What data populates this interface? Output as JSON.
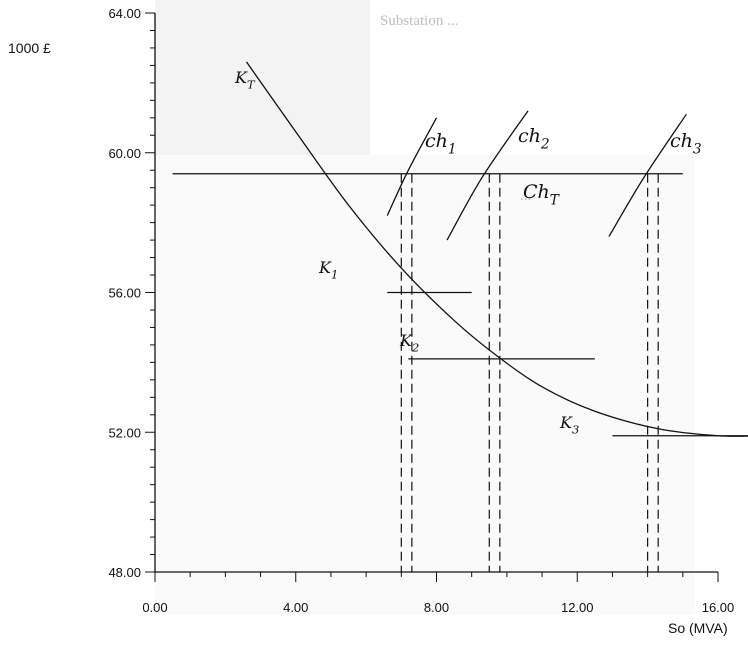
{
  "chart_data": {
    "type": "line",
    "y_unit_label": "1000 £",
    "xlabel": "So (MVA)",
    "xlim": [
      0,
      16
    ],
    "ylim": [
      48,
      64
    ],
    "x_ticks": [
      "0.00",
      "4.00",
      "8.00",
      "12.00",
      "16.00"
    ],
    "y_ticks": [
      "48.00",
      "52.00",
      "56.00",
      "60.00",
      "64.00"
    ],
    "curve": {
      "name": "K_T",
      "points": [
        [
          2.6,
          62.6
        ],
        [
          4.0,
          60.6
        ],
        [
          5.5,
          58.5
        ],
        [
          7.0,
          56.7
        ],
        [
          8.5,
          55.2
        ],
        [
          9.7,
          54.2
        ],
        [
          11.0,
          53.3
        ],
        [
          12.5,
          52.6
        ],
        [
          14.3,
          52.1
        ],
        [
          16.0,
          51.9
        ],
        [
          17.2,
          51.9
        ]
      ]
    },
    "horizontal_lines": [
      {
        "name": "Ch_T",
        "x_from": 0.5,
        "x_to": 15.0,
        "y": 59.4
      },
      {
        "name": "K_1",
        "x_from": 6.6,
        "x_to": 9.0,
        "y": 56.0
      },
      {
        "name": "K_2",
        "x_from": 7.2,
        "x_to": 12.5,
        "y": 54.1
      },
      {
        "name": "K_3",
        "x_from": 13.0,
        "x_to": 17.2,
        "y": 51.9
      }
    ],
    "short_curves": [
      {
        "name": "ch_1",
        "points": [
          [
            6.6,
            58.2
          ],
          [
            7.2,
            59.5
          ],
          [
            8.0,
            61.0
          ]
        ]
      },
      {
        "name": "ch_2",
        "points": [
          [
            8.3,
            57.5
          ],
          [
            9.3,
            59.3
          ],
          [
            10.6,
            61.2
          ]
        ]
      },
      {
        "name": "ch_3",
        "points": [
          [
            12.9,
            57.6
          ],
          [
            13.9,
            59.3
          ],
          [
            15.1,
            61.1
          ]
        ]
      }
    ],
    "dashed_pairs": [
      {
        "x1": 7.0,
        "x2": 7.3,
        "y_top": 59.4
      },
      {
        "x1": 9.5,
        "x2": 9.8,
        "y_top": 59.4
      },
      {
        "x1": 14.0,
        "x2": 14.3,
        "y_top": 59.4
      }
    ],
    "labels": {
      "kt": "K",
      "kt_sub": "T",
      "ch1": "ch",
      "ch1_sub": "1",
      "ch2": "ch",
      "ch2_sub": "2",
      "ch3": "ch",
      "ch3_sub": "3",
      "cht": "Ch",
      "cht_sub": "T",
      "k1": "K",
      "k1_sub": "1",
      "k2": "K",
      "k2_sub": "2",
      "k3": "K",
      "k3_sub": "3"
    }
  }
}
